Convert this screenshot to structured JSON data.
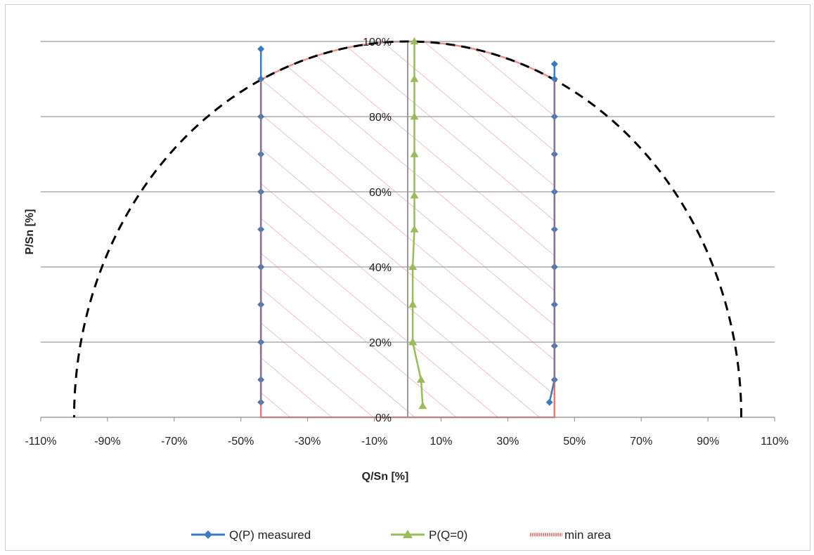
{
  "chart_data": {
    "type": "line",
    "xlabel": "Q/Sn [%]",
    "ylabel": "P/Sn [%]",
    "xlim": [
      -110,
      110
    ],
    "ylim": [
      0,
      100
    ],
    "x_ticks": [
      -110,
      -90,
      -70,
      -50,
      -30,
      -10,
      10,
      30,
      50,
      70,
      90,
      110
    ],
    "x_tick_labels": [
      "-110%",
      "-90%",
      "-70%",
      "-50%",
      "-30%",
      "-10%",
      "10%",
      "30%",
      "50%",
      "70%",
      "90%",
      "110%"
    ],
    "y_ticks": [
      0,
      20,
      40,
      60,
      80,
      100
    ],
    "y_tick_labels": [
      "0%",
      "20%",
      "40%",
      "60%",
      "80%",
      "100%"
    ],
    "grid": "horizontal",
    "legend_position": "bottom",
    "capability_circle": {
      "radius": 100,
      "style": "dashed",
      "color": "#000000"
    },
    "series": [
      {
        "name": "Q(P) measured",
        "color": "#3a7bbf",
        "marker": "diamond",
        "segments": [
          {
            "x": [
              -44,
              -44,
              -44,
              -44,
              -44,
              -44,
              -44,
              -44,
              -44,
              -44,
              -44
            ],
            "y": [
              98,
              90,
              80,
              70,
              60,
              50,
              40,
              30,
              20,
              10,
              4
            ]
          },
          {
            "x": [
              44,
              44,
              44,
              44,
              44,
              44,
              44,
              44,
              44,
              44,
              42.5
            ],
            "y": [
              94,
              90,
              80,
              70,
              60,
              50,
              40,
              30,
              19,
              10,
              4
            ]
          }
        ]
      },
      {
        "name": "P(Q=0)",
        "color": "#9bbb59",
        "marker": "triangle",
        "x": [
          2,
          2,
          2,
          2,
          2,
          2,
          1.5,
          1.5,
          1.5,
          1.5,
          4,
          4.5
        ],
        "y": [
          100,
          90,
          80,
          70,
          59,
          50,
          40,
          30,
          20,
          20,
          10,
          3
        ]
      },
      {
        "name": "min area",
        "color": "#e06666",
        "type": "hatched-area",
        "q_limit": 44
      }
    ]
  }
}
